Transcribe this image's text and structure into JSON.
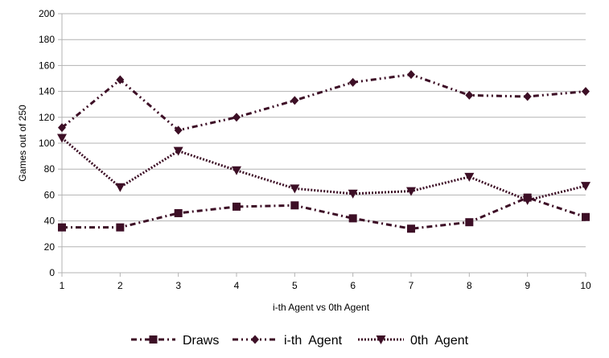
{
  "chart_data": {
    "type": "line",
    "title": "",
    "xlabel": "i-th Agent vs 0th Agent",
    "ylabel": "Games out of 250",
    "x": [
      1,
      2,
      3,
      4,
      5,
      6,
      7,
      8,
      9,
      10
    ],
    "xlim": [
      1,
      10
    ],
    "ylim": [
      0,
      200
    ],
    "yticks": [
      0,
      20,
      40,
      60,
      80,
      100,
      120,
      140,
      160,
      180,
      200
    ],
    "grid": "horizontal",
    "legend_position": "bottom",
    "series": [
      {
        "name": "Draws",
        "values": [
          35,
          35,
          46,
          51,
          52,
          42,
          34,
          39,
          58,
          43
        ],
        "marker": "square",
        "line_style": "dash-dot",
        "color": "#3d0f26"
      },
      {
        "name": "i-th  Agent",
        "values": [
          112,
          149,
          110,
          120,
          133,
          147,
          153,
          137,
          136,
          140
        ],
        "marker": "diamond",
        "line_style": "dash-dot-dot",
        "color": "#3d0f26"
      },
      {
        "name": "0th  Agent",
        "values": [
          104,
          66,
          94,
          79,
          65,
          61,
          63,
          74,
          56,
          67
        ],
        "marker": "triangle-down",
        "line_style": "dotted",
        "color": "#3d0f26"
      }
    ],
    "colors": {
      "gridline": "#b3b3b3",
      "axis": "#b3b3b3",
      "text": "#000000"
    }
  }
}
